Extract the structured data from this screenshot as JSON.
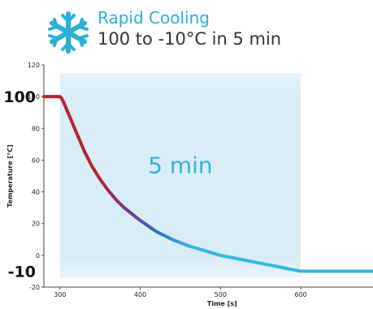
{
  "header": {
    "icon": "snowflake-icon",
    "title": "Rapid Cooling",
    "subtitle": "100 to -10°C in 5 min",
    "accent": "#2cb0d8"
  },
  "chart_data": {
    "type": "line",
    "title": "Rapid Cooling",
    "subtitle": "100 to -10°C in 5 min",
    "xlabel": "Time [s]",
    "ylabel": "Temperature [°C]",
    "xlim": [
      280,
      690
    ],
    "ylim": [
      -20,
      120
    ],
    "x_ticks": [
      300,
      400,
      500,
      600
    ],
    "y_ticks": [
      -20,
      0,
      20,
      40,
      60,
      80,
      100,
      120
    ],
    "emphasized_y_labels": [
      {
        "value": 100,
        "label": "100"
      },
      {
        "value": -10,
        "label": "-10"
      }
    ],
    "grid": false,
    "highlight_region": {
      "x_start": 300,
      "x_end": 600,
      "color": "#d9edf7"
    },
    "annotation": {
      "text": "5 min",
      "x": 450,
      "y": 57
    },
    "series": [
      {
        "values_x": [
          280,
          290,
          300,
          302,
          305,
          310,
          315,
          320,
          325,
          330,
          340,
          350,
          360,
          370,
          380,
          390,
          400,
          420,
          440,
          460,
          480,
          500,
          520,
          540,
          560,
          580,
          600,
          620,
          640,
          660,
          690
        ],
        "values_y": [
          100,
          100,
          100,
          99,
          96,
          90,
          84,
          78,
          72,
          66,
          56,
          48,
          41,
          35,
          30,
          26,
          22,
          15,
          10,
          6,
          3,
          0,
          -2,
          -4,
          -6,
          -8,
          -10,
          -10,
          -10,
          -10,
          -10
        ],
        "color_gradient": [
          "#b5232e",
          "#3a63b0",
          "#34b6e0"
        ]
      }
    ]
  }
}
